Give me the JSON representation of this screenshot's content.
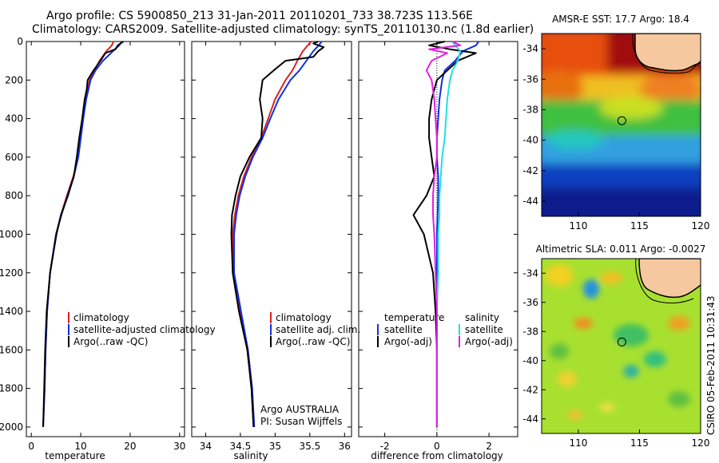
{
  "header": {
    "title_line1": "Argo profile: CS 5900850_213 31-Jan-2011 20110201_733 38.723S 113.56E",
    "title_line2": "Climatology: CARS2009. Satellite-adjusted climatology: synTS_20110130.nc (1.8d earlier)"
  },
  "side_text": "CSIRO 05-Feb-2011 10:31:43",
  "colors": {
    "climatology": "#e02020",
    "satellite": "#1030e0",
    "argo": "#000000",
    "salinity_satellite": "#20e0e0",
    "salinity_argo": "#e020e0"
  },
  "chart_data": [
    {
      "type": "line",
      "xlabel": "temperature",
      "xlim": [
        -1,
        31
      ],
      "xticks": [
        "0",
        "10",
        "20",
        "30"
      ],
      "ylim": [
        2050,
        0
      ],
      "yticks": [
        "0",
        "200",
        "400",
        "600",
        "800",
        "1000",
        "1200",
        "1400",
        "1600",
        "1800",
        "2000"
      ],
      "legend": [
        "climatology",
        "satellite-adjusted climatology",
        "Argo(..raw -QC)"
      ],
      "series": [
        {
          "name": "climatology",
          "color": "climatology",
          "depth": [
            0,
            20,
            50,
            100,
            150,
            200,
            300,
            400,
            500,
            600,
            700,
            800,
            900,
            1000,
            1200,
            1400,
            1600,
            1800,
            2000
          ],
          "values": [
            16.6,
            16.3,
            15.2,
            13.8,
            12.8,
            11.8,
            11.0,
            10.5,
            10.0,
            9.5,
            8.5,
            7.2,
            6.0,
            5.0,
            3.8,
            3.2,
            2.9,
            2.7,
            2.4
          ]
        },
        {
          "name": "satellite-adjusted climatology",
          "color": "satellite",
          "depth": [
            0,
            20,
            50,
            100,
            150,
            200,
            300,
            400,
            500,
            600,
            700,
            800,
            900,
            1000,
            1200,
            1400,
            1600,
            1800,
            2000
          ],
          "values": [
            18.3,
            17.8,
            16.5,
            14.5,
            13.0,
            12.0,
            11.1,
            10.5,
            10.0,
            9.5,
            8.6,
            7.3,
            6.1,
            5.0,
            3.8,
            3.2,
            2.9,
            2.7,
            2.4
          ]
        },
        {
          "name": "Argo(..raw -QC)",
          "color": "argo",
          "depth": [
            0,
            20,
            40,
            60,
            100,
            150,
            200,
            250,
            300,
            400,
            500,
            600,
            700,
            800,
            900,
            1000,
            1200,
            1400,
            1600,
            1800,
            2000
          ],
          "values": [
            18.6,
            17.5,
            17.0,
            15.0,
            14.0,
            12.6,
            11.4,
            11.2,
            10.8,
            10.3,
            9.7,
            9.2,
            8.6,
            7.4,
            6.0,
            5.1,
            3.8,
            3.1,
            2.8,
            2.6,
            2.4
          ]
        }
      ]
    },
    {
      "type": "line",
      "xlabel": "salinity",
      "xlim": [
        33.8,
        36.1
      ],
      "xticks": [
        "34",
        "34.5",
        "35",
        "35.5",
        "36"
      ],
      "ylim": [
        2050,
        0
      ],
      "legend": [
        "climatology",
        "satellite adj. clim.",
        "Argo(..raw -QC)"
      ],
      "annotation": [
        "Argo AUSTRALIA",
        "PI: Susan Wijffels"
      ],
      "series": [
        {
          "name": "climatology",
          "color": "climatology",
          "depth": [
            0,
            20,
            50,
            100,
            150,
            200,
            300,
            400,
            500,
            600,
            700,
            800,
            900,
            1000,
            1200,
            1400,
            1600,
            1800,
            2000
          ],
          "values": [
            35.52,
            35.47,
            35.4,
            35.32,
            35.25,
            35.15,
            35.0,
            34.9,
            34.8,
            34.66,
            34.55,
            34.47,
            34.42,
            34.39,
            34.4,
            34.5,
            34.6,
            34.66,
            34.69
          ]
        },
        {
          "name": "satellite adj. clim.",
          "color": "satellite",
          "depth": [
            0,
            20,
            50,
            100,
            150,
            200,
            300,
            400,
            500,
            600,
            700,
            800,
            900,
            1000,
            1200,
            1400,
            1600,
            1800,
            2000
          ],
          "values": [
            35.67,
            35.63,
            35.55,
            35.45,
            35.35,
            35.22,
            35.05,
            34.93,
            34.82,
            34.68,
            34.57,
            34.49,
            34.44,
            34.41,
            34.41,
            34.51,
            34.61,
            34.67,
            34.7
          ]
        },
        {
          "name": "Argo(..raw -QC)",
          "color": "argo",
          "depth": [
            0,
            10,
            30,
            50,
            80,
            100,
            150,
            200,
            250,
            300,
            400,
            500,
            600,
            700,
            800,
            900,
            1000,
            1200,
            1400,
            1600,
            1800,
            2000
          ],
          "values": [
            35.62,
            35.55,
            35.7,
            35.62,
            35.55,
            35.15,
            34.98,
            34.82,
            34.8,
            34.78,
            34.82,
            34.8,
            34.63,
            34.5,
            34.43,
            34.38,
            34.37,
            34.39,
            34.48,
            34.6,
            34.66,
            34.69
          ]
        }
      ]
    },
    {
      "type": "line",
      "xlabel": "difference from climatology",
      "xlim": [
        -3,
        3.1
      ],
      "xticks": [
        "-2",
        "0",
        "2"
      ],
      "ylim": [
        2050,
        0
      ],
      "legend_temperature": {
        "heading": "temperature",
        "items": [
          "satellite",
          "Argo(-adj)"
        ]
      },
      "legend_salinity": {
        "heading": "salinity",
        "items": [
          "satellite",
          "Argo(-adj)"
        ]
      },
      "series": [
        {
          "name": "temperature satellite",
          "color": "satellite",
          "depth": [
            0,
            20,
            50,
            100,
            150,
            200,
            300,
            400,
            500,
            600,
            700,
            800,
            1000,
            1200,
            1400,
            1600,
            1800,
            2000
          ],
          "values": [
            1.6,
            1.5,
            1.0,
            0.7,
            0.3,
            0.2,
            0.1,
            0.05,
            0.0,
            0.0,
            0.05,
            0.05,
            0.0,
            0.0,
            0.0,
            0.0,
            0.0,
            0.0
          ]
        },
        {
          "name": "temperature Argo(-adj)",
          "color": "argo",
          "depth": [
            0,
            20,
            40,
            60,
            100,
            150,
            200,
            300,
            400,
            500,
            600,
            700,
            800,
            900,
            1000,
            1200,
            1400,
            1600,
            1800,
            2000
          ],
          "values": [
            0.3,
            -0.3,
            0.5,
            1.5,
            0.8,
            0.4,
            0.0,
            -0.2,
            -0.3,
            -0.3,
            -0.2,
            -0.1,
            -0.4,
            -0.9,
            -0.5,
            -0.15,
            -0.05,
            0.0,
            0.0,
            0.0
          ]
        },
        {
          "name": "salinity satellite",
          "color": "salinity_satellite",
          "depth": [
            0,
            20,
            50,
            100,
            150,
            200,
            300,
            400,
            500,
            600,
            700,
            800,
            900,
            1000,
            1200,
            1400,
            1600,
            1800,
            2000
          ],
          "values": [
            0.6,
            0.7,
            0.9,
            0.8,
            0.6,
            0.5,
            0.4,
            0.35,
            0.3,
            0.2,
            0.15,
            0.1,
            0.1,
            0.05,
            0.05,
            0.0,
            0.0,
            0.0,
            0.0
          ]
        },
        {
          "name": "salinity Argo(-adj)",
          "color": "salinity_argo",
          "depth": [
            0,
            20,
            40,
            60,
            100,
            150,
            200,
            300,
            400,
            500,
            600,
            700,
            800,
            900,
            1000,
            1200,
            1400,
            1600,
            1800,
            2000
          ],
          "values": [
            0.6,
            0.9,
            -0.3,
            0.4,
            -0.2,
            -0.4,
            -0.2,
            -0.1,
            -0.05,
            0.0,
            0.0,
            -0.1,
            -0.15,
            -0.15,
            -0.1,
            -0.05,
            0.0,
            0.0,
            0.0,
            0.0
          ]
        }
      ]
    },
    {
      "type": "heatmap",
      "title": "AMSR-E SST: 17.7 Argo: 18.4",
      "xticks": [
        "110",
        "115",
        "120"
      ],
      "yticks": [
        "-34",
        "-36",
        "-38",
        "-40",
        "-42",
        "-44"
      ],
      "xlim": [
        107,
        120
      ],
      "ylim": [
        -45,
        -33
      ],
      "marker": {
        "lon": 113.56,
        "lat": -38.723
      }
    },
    {
      "type": "heatmap",
      "title": "Altimetric SLA: 0.011 Argo: -0.0027",
      "xticks": [
        "110",
        "115",
        "120"
      ],
      "yticks": [
        "-34",
        "-36",
        "-38",
        "-40",
        "-42",
        "-44"
      ],
      "xlim": [
        107,
        120
      ],
      "ylim": [
        -45,
        -33
      ],
      "marker": {
        "lon": 113.56,
        "lat": -38.723
      }
    }
  ]
}
